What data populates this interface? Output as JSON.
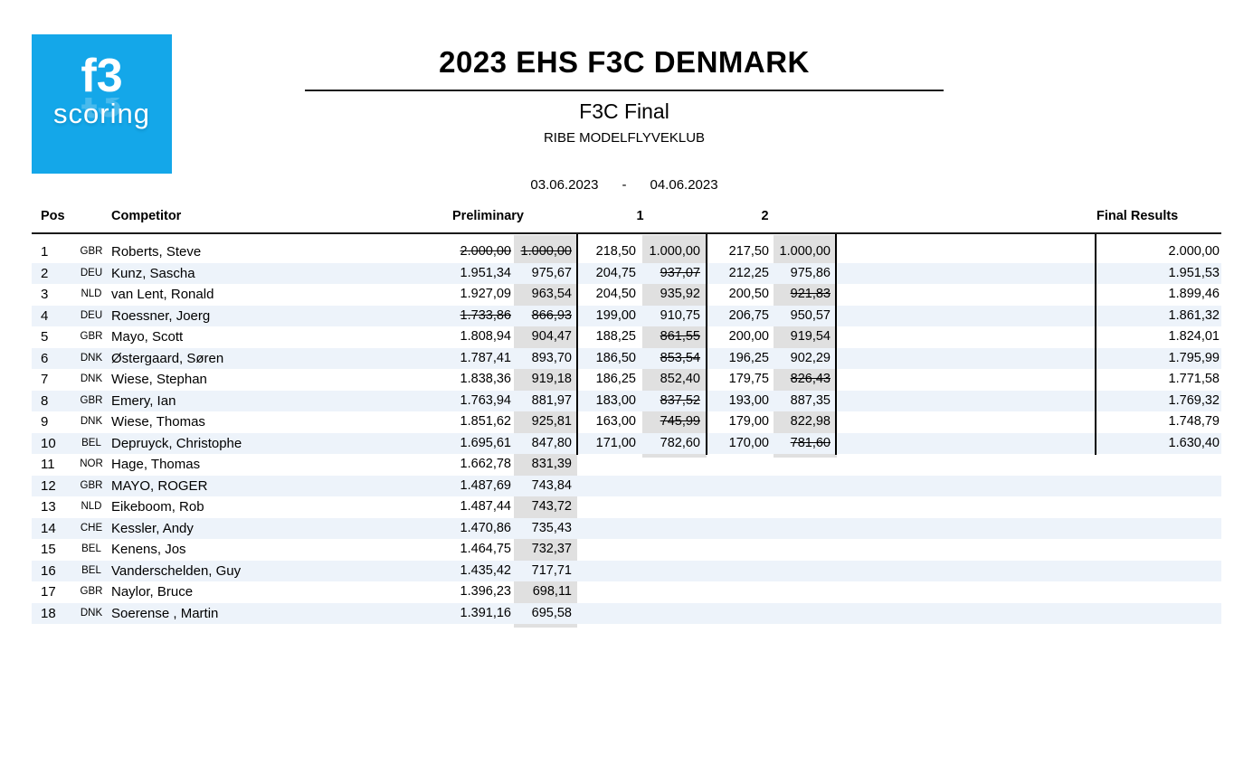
{
  "colors": {
    "logo_blue": "#14a7e9",
    "row_stripe": "#edf3fa",
    "score_column_gray": "#e0e0e0",
    "rule_black": "#1a1a1a"
  },
  "logo": {
    "line1": "f3",
    "line2": "scoring"
  },
  "header": {
    "title": "2023 EHS F3C DENMARK",
    "subtitle": "F3C Final",
    "club": "RIBE MODELFLYVEKLUB",
    "date_from": "03.06.2023",
    "date_sep": "-",
    "date_to": "04.06.2023"
  },
  "table": {
    "columns": {
      "pos": "Pos",
      "competitor": "Competitor",
      "preliminary": "Preliminary",
      "round1": "1",
      "round2": "2",
      "final": "Final Results"
    },
    "rows": [
      {
        "pos": "1",
        "country": "GBR",
        "name": "Roberts, Steve",
        "prelim_raw": "2.000,00",
        "prelim_score": "1.000,00",
        "r1_raw": "218,50",
        "r1_score": "1.000,00",
        "r2_raw": "217,50",
        "r2_score": "1.000,00",
        "final": "2.000,00",
        "struck": [
          "prelim_raw",
          "prelim_score"
        ]
      },
      {
        "pos": "2",
        "country": "DEU",
        "name": "Kunz, Sascha",
        "prelim_raw": "1.951,34",
        "prelim_score": "975,67",
        "r1_raw": "204,75",
        "r1_score": "937,07",
        "r2_raw": "212,25",
        "r2_score": "975,86",
        "final": "1.951,53",
        "struck": [
          "r1_score"
        ]
      },
      {
        "pos": "3",
        "country": "NLD",
        "name": "van Lent, Ronald",
        "prelim_raw": "1.927,09",
        "prelim_score": "963,54",
        "r1_raw": "204,50",
        "r1_score": "935,92",
        "r2_raw": "200,50",
        "r2_score": "921,83",
        "final": "1.899,46",
        "struck": [
          "r2_score"
        ]
      },
      {
        "pos": "4",
        "country": "DEU",
        "name": "Roessner, Joerg",
        "prelim_raw": "1.733,86",
        "prelim_score": "866,93",
        "r1_raw": "199,00",
        "r1_score": "910,75",
        "r2_raw": "206,75",
        "r2_score": "950,57",
        "final": "1.861,32",
        "struck": [
          "prelim_raw",
          "prelim_score"
        ]
      },
      {
        "pos": "5",
        "country": "GBR",
        "name": "Mayo, Scott",
        "prelim_raw": "1.808,94",
        "prelim_score": "904,47",
        "r1_raw": "188,25",
        "r1_score": "861,55",
        "r2_raw": "200,00",
        "r2_score": "919,54",
        "final": "1.824,01",
        "struck": [
          "r1_score"
        ]
      },
      {
        "pos": "6",
        "country": "DNK",
        "name": "Østergaard, Søren",
        "prelim_raw": "1.787,41",
        "prelim_score": "893,70",
        "r1_raw": "186,50",
        "r1_score": "853,54",
        "r2_raw": "196,25",
        "r2_score": "902,29",
        "final": "1.795,99",
        "struck": [
          "r1_score"
        ]
      },
      {
        "pos": "7",
        "country": "DNK",
        "name": "Wiese, Stephan",
        "prelim_raw": "1.838,36",
        "prelim_score": "919,18",
        "r1_raw": "186,25",
        "r1_score": "852,40",
        "r2_raw": "179,75",
        "r2_score": "826,43",
        "final": "1.771,58",
        "struck": [
          "r2_score"
        ]
      },
      {
        "pos": "8",
        "country": "GBR",
        "name": "Emery, Ian",
        "prelim_raw": "1.763,94",
        "prelim_score": "881,97",
        "r1_raw": "183,00",
        "r1_score": "837,52",
        "r2_raw": "193,00",
        "r2_score": "887,35",
        "final": "1.769,32",
        "struck": [
          "r1_score"
        ]
      },
      {
        "pos": "9",
        "country": "DNK",
        "name": "Wiese, Thomas",
        "prelim_raw": "1.851,62",
        "prelim_score": "925,81",
        "r1_raw": "163,00",
        "r1_score": "745,99",
        "r2_raw": "179,00",
        "r2_score": "822,98",
        "final": "1.748,79",
        "struck": [
          "r1_score"
        ]
      },
      {
        "pos": "10",
        "country": "BEL",
        "name": "Depruyck, Christophe",
        "prelim_raw": "1.695,61",
        "prelim_score": "847,80",
        "r1_raw": "171,00",
        "r1_score": "782,60",
        "r2_raw": "170,00",
        "r2_score": "781,60",
        "final": "1.630,40",
        "struck": [
          "r2_score"
        ]
      },
      {
        "pos": "11",
        "country": "NOR",
        "name": "Hage, Thomas",
        "prelim_raw": "1.662,78",
        "prelim_score": "831,39",
        "r1_raw": "",
        "r1_score": "",
        "r2_raw": "",
        "r2_score": "",
        "final": "",
        "struck": []
      },
      {
        "pos": "12",
        "country": "GBR",
        "name": "MAYO, ROGER",
        "prelim_raw": "1.487,69",
        "prelim_score": "743,84",
        "r1_raw": "",
        "r1_score": "",
        "r2_raw": "",
        "r2_score": "",
        "final": "",
        "struck": []
      },
      {
        "pos": "13",
        "country": "NLD",
        "name": "Eikeboom, Rob",
        "prelim_raw": "1.487,44",
        "prelim_score": "743,72",
        "r1_raw": "",
        "r1_score": "",
        "r2_raw": "",
        "r2_score": "",
        "final": "",
        "struck": []
      },
      {
        "pos": "14",
        "country": "CHE",
        "name": "Kessler, Andy",
        "prelim_raw": "1.470,86",
        "prelim_score": "735,43",
        "r1_raw": "",
        "r1_score": "",
        "r2_raw": "",
        "r2_score": "",
        "final": "",
        "struck": []
      },
      {
        "pos": "15",
        "country": "BEL",
        "name": "Kenens, Jos",
        "prelim_raw": "1.464,75",
        "prelim_score": "732,37",
        "r1_raw": "",
        "r1_score": "",
        "r2_raw": "",
        "r2_score": "",
        "final": "",
        "struck": []
      },
      {
        "pos": "16",
        "country": "BEL",
        "name": "Vanderschelden, Guy",
        "prelim_raw": "1.435,42",
        "prelim_score": "717,71",
        "r1_raw": "",
        "r1_score": "",
        "r2_raw": "",
        "r2_score": "",
        "final": "",
        "struck": []
      },
      {
        "pos": "17",
        "country": "GBR",
        "name": "Naylor, Bruce",
        "prelim_raw": "1.396,23",
        "prelim_score": "698,11",
        "r1_raw": "",
        "r1_score": "",
        "r2_raw": "",
        "r2_score": "",
        "final": "",
        "struck": []
      },
      {
        "pos": "18",
        "country": "DNK",
        "name": "Soerense , Martin",
        "prelim_raw": "1.391,16",
        "prelim_score": "695,58",
        "r1_raw": "",
        "r1_score": "",
        "r2_raw": "",
        "r2_score": "",
        "final": "",
        "struck": []
      }
    ]
  }
}
